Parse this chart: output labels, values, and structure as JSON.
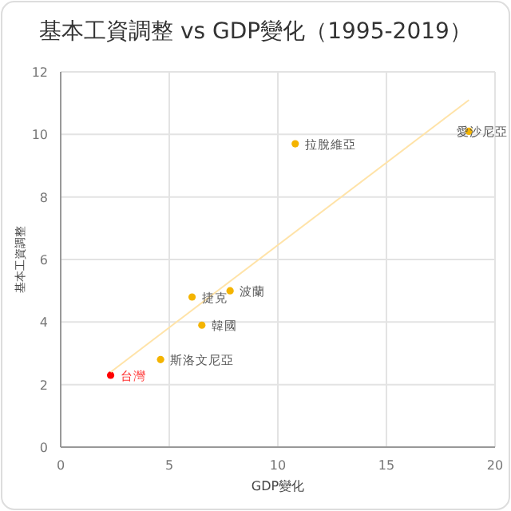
{
  "chart_data": {
    "type": "scatter",
    "title": "基本工資調整 vs GDP變化（1995-2019）",
    "xlabel": "GDP變化",
    "ylabel": "基本工資調整",
    "xlim": [
      0,
      20
    ],
    "xticks": [
      0,
      5,
      10,
      15,
      20
    ],
    "ylim": [
      0,
      12
    ],
    "yticks": [
      0,
      2,
      4,
      6,
      8,
      10,
      12
    ],
    "grid": true,
    "series": [
      {
        "marker": "circle",
        "x": [
          2.3,
          4.6,
          6.05,
          7.8,
          6.5,
          10.8,
          18.8
        ],
        "values": [
          2.3,
          2.8,
          4.8,
          5.0,
          3.9,
          9.7,
          10.1
        ],
        "colors": [
          "#ff0000",
          "#f4b400",
          "#f4b400",
          "#f4b400",
          "#f4b400",
          "#f4b400",
          "#f4b400"
        ]
      },
      {
        "type": "line",
        "x": [
          2.3,
          18.8
        ],
        "values": [
          2.4,
          11.1
        ],
        "color": "#ffe3a8"
      }
    ],
    "annotations": [
      {
        "text": "台灣",
        "x": 2.3,
        "y": 2.3
      },
      {
        "text": "斯洛文尼亞",
        "x": 4.6,
        "y": 2.8
      },
      {
        "text": "捷克",
        "x": 6.05,
        "y": 4.8
      },
      {
        "text": "波蘭",
        "x": 7.8,
        "y": 5.0
      },
      {
        "text": "韓國",
        "x": 6.5,
        "y": 3.9
      },
      {
        "text": "拉脫維亞",
        "x": 10.8,
        "y": 9.7
      },
      {
        "text": "愛沙尼亞",
        "x": 18.8,
        "y": 10.1
      }
    ]
  }
}
